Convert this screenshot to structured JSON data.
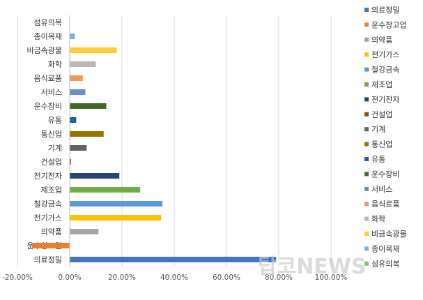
{
  "chart_data": {
    "type": "bar",
    "orientation": "horizontal",
    "categories": [
      "의료정밀",
      "운수창고업",
      "의약품",
      "전기가스",
      "철강금속",
      "제조업",
      "전기전자",
      "건설업",
      "기계",
      "통신업",
      "유통",
      "운수장비",
      "서비스",
      "음식료품",
      "화학",
      "비금속광물",
      "종이목재",
      "섬유의복"
    ],
    "values": [
      79.0,
      -14.5,
      11.0,
      35.0,
      35.5,
      27.0,
      19.0,
      0.5,
      6.5,
      13.0,
      2.5,
      14.0,
      6.0,
      5.0,
      10.0,
      18.0,
      2.0,
      0.0
    ],
    "colors": [
      "#4472C4",
      "#ED7D31",
      "#A5A5A5",
      "#FFC000",
      "#5B9BD5",
      "#70AD47",
      "#264478",
      "#9E480E",
      "#636363",
      "#997300",
      "#255E91",
      "#43682B",
      "#698ED0",
      "#F1975A",
      "#B7B7B7",
      "#FFCD33",
      "#7CAFDD",
      "#8CC168"
    ],
    "xlim": [
      -20,
      100
    ],
    "xticks": [
      "-20.00%",
      "0.00%",
      "20.00%",
      "40.00%",
      "60.00%",
      "80.00%",
      "100.00%"
    ],
    "xtick_values": [
      -20,
      0,
      20,
      40,
      60,
      80,
      100
    ],
    "grid": true,
    "legend": "right",
    "title": "",
    "xlabel": "",
    "ylabel": ""
  },
  "watermark": "탑코NEWS"
}
